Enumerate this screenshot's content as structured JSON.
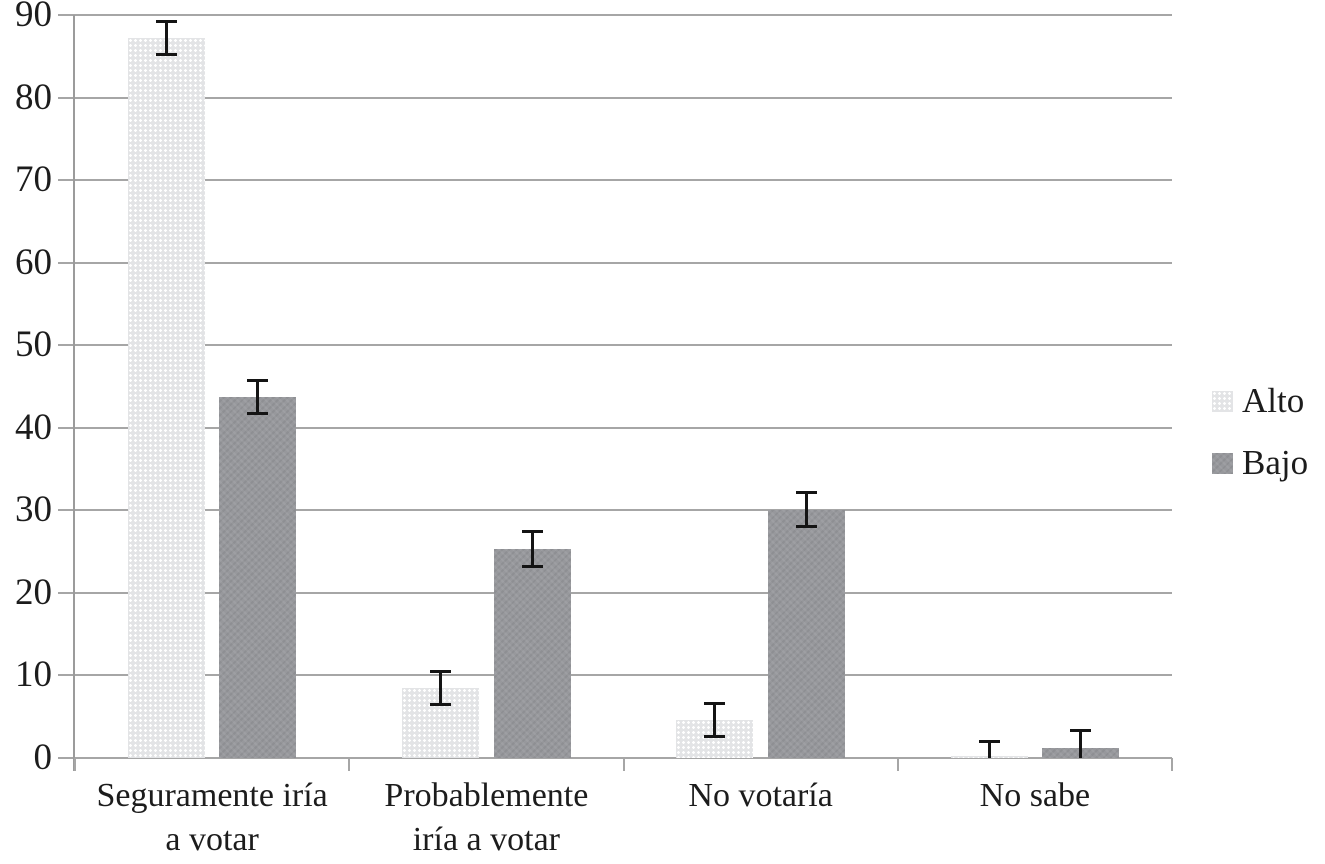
{
  "chart_data": {
    "type": "bar",
    "title": "",
    "xlabel": "",
    "ylabel": "",
    "categories": [
      "Seguramente iría a votar",
      "Probablemente iría a votar",
      "No votaría",
      "No sabe"
    ],
    "category_lines": [
      [
        "Seguramente iría",
        "a votar"
      ],
      [
        "Probablemente",
        "iría a votar"
      ],
      [
        "No votaría"
      ],
      [
        "No sabe"
      ]
    ],
    "series": [
      {
        "name": "Alto",
        "values": [
          87.2,
          8.5,
          4.6,
          0.2
        ],
        "errors": [
          2.2,
          2.2,
          2.2,
          2.0
        ]
      },
      {
        "name": "Bajo",
        "values": [
          43.7,
          25.3,
          30.1,
          1.2
        ],
        "errors": [
          2.2,
          2.3,
          2.2,
          2.3
        ]
      }
    ],
    "ylim": [
      0,
      90
    ],
    "yticks": [
      0,
      10,
      20,
      30,
      40,
      50,
      60,
      70,
      80,
      90
    ],
    "grid": true,
    "error_bars": true,
    "legend_position": "right",
    "colors": {
      "alto_fill": "#e3e4e6",
      "bajo_fill": "#97989c",
      "gridline": "#a6a6a6",
      "axis": "#9b9b9b",
      "error_bar": "#141414",
      "text": "#1c1c1c",
      "background": "#ffffff"
    }
  }
}
